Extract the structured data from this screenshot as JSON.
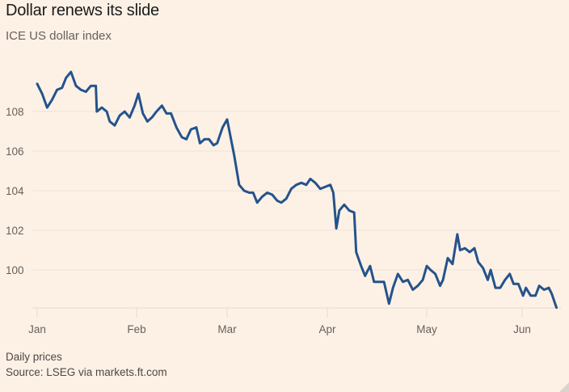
{
  "header": {
    "title": "Dollar renews its slide",
    "subtitle": "ICE US dollar index"
  },
  "footer": {
    "note": "Daily prices",
    "source": "Source: LSEG via markets.ft.com"
  },
  "colors": {
    "background": "#fdf1e6",
    "line": "#24538b",
    "grid": "#ebe2d9",
    "text": "#66605c"
  },
  "chart_data": {
    "type": "line",
    "title": "Dollar renews its slide",
    "subtitle": "ICE US dollar index",
    "xlabel": "",
    "ylabel": "",
    "x_ticks": [
      "Jan",
      "Feb",
      "Mar",
      "Apr",
      "May",
      "Jun"
    ],
    "y_ticks": [
      100,
      102,
      104,
      106,
      108
    ],
    "ylim": [
      98.0,
      110.0
    ],
    "xlim": [
      0,
      5.7
    ],
    "grid": true,
    "legend": "none",
    "series": [
      {
        "name": "ICE US dollar index",
        "x": [
          0.0,
          0.05,
          0.1,
          0.15,
          0.2,
          0.25,
          0.29,
          0.34,
          0.39,
          0.44,
          0.49,
          0.54,
          0.59,
          0.6,
          0.65,
          0.7,
          0.73,
          0.78,
          0.83,
          0.88,
          0.93,
          0.98,
          1.02,
          1.07,
          1.12,
          1.17,
          1.22,
          1.28,
          1.33,
          1.38,
          1.44,
          1.5,
          1.55,
          1.6,
          1.66,
          1.7,
          1.75,
          1.8,
          1.85,
          1.89,
          1.95,
          2.0,
          2.07,
          2.12,
          2.17,
          2.22,
          2.26,
          2.3,
          2.35,
          2.4,
          2.45,
          2.5,
          2.54,
          2.59,
          2.64,
          2.69,
          2.74,
          2.79,
          2.83,
          2.88,
          2.93,
          2.98,
          3.03,
          3.06,
          3.09,
          3.12,
          3.17,
          3.22,
          3.27,
          3.29,
          3.34,
          3.38,
          3.43,
          3.47,
          3.52,
          3.57,
          3.62,
          3.66,
          3.71,
          3.76,
          3.81,
          3.86,
          3.91,
          3.96,
          4.0,
          4.04,
          4.09,
          4.14,
          4.17,
          4.22,
          4.27,
          4.32,
          4.35,
          4.4,
          4.45,
          4.5,
          4.54,
          4.59,
          4.64,
          4.67,
          4.72,
          4.77,
          4.82,
          4.87,
          4.91,
          4.96,
          5.01,
          5.04,
          5.09,
          5.14,
          5.18,
          5.23,
          5.28,
          5.31,
          5.36
        ],
        "values": [
          109.4,
          108.9,
          108.2,
          108.6,
          109.1,
          109.2,
          109.7,
          110.0,
          109.3,
          109.1,
          109.0,
          109.3,
          109.3,
          108.0,
          108.2,
          108.0,
          107.5,
          107.3,
          107.8,
          108.0,
          107.7,
          108.3,
          108.9,
          107.9,
          107.5,
          107.7,
          108.0,
          108.3,
          107.9,
          107.9,
          107.2,
          106.7,
          106.6,
          107.1,
          107.2,
          106.4,
          106.6,
          106.6,
          106.3,
          106.4,
          107.2,
          107.6,
          105.8,
          104.3,
          104.0,
          103.9,
          103.9,
          103.4,
          103.7,
          103.9,
          103.8,
          103.5,
          103.4,
          103.6,
          104.1,
          104.3,
          104.4,
          104.3,
          104.6,
          104.4,
          104.1,
          104.2,
          104.3,
          103.9,
          102.1,
          103.0,
          103.3,
          103.0,
          102.9,
          100.9,
          100.2,
          99.7,
          100.2,
          99.4,
          99.4,
          99.4,
          98.3,
          99.1,
          99.8,
          99.4,
          99.5,
          99.0,
          99.2,
          99.5,
          100.2,
          100.0,
          99.8,
          99.2,
          99.5,
          100.6,
          100.3,
          101.8,
          101.0,
          101.1,
          100.9,
          101.1,
          100.4,
          100.1,
          99.5,
          100.0,
          99.1,
          99.1,
          99.5,
          99.8,
          99.3,
          99.3,
          98.7,
          99.1,
          98.7,
          98.7,
          99.2,
          99.0,
          99.1,
          98.8,
          98.1
        ]
      }
    ]
  }
}
